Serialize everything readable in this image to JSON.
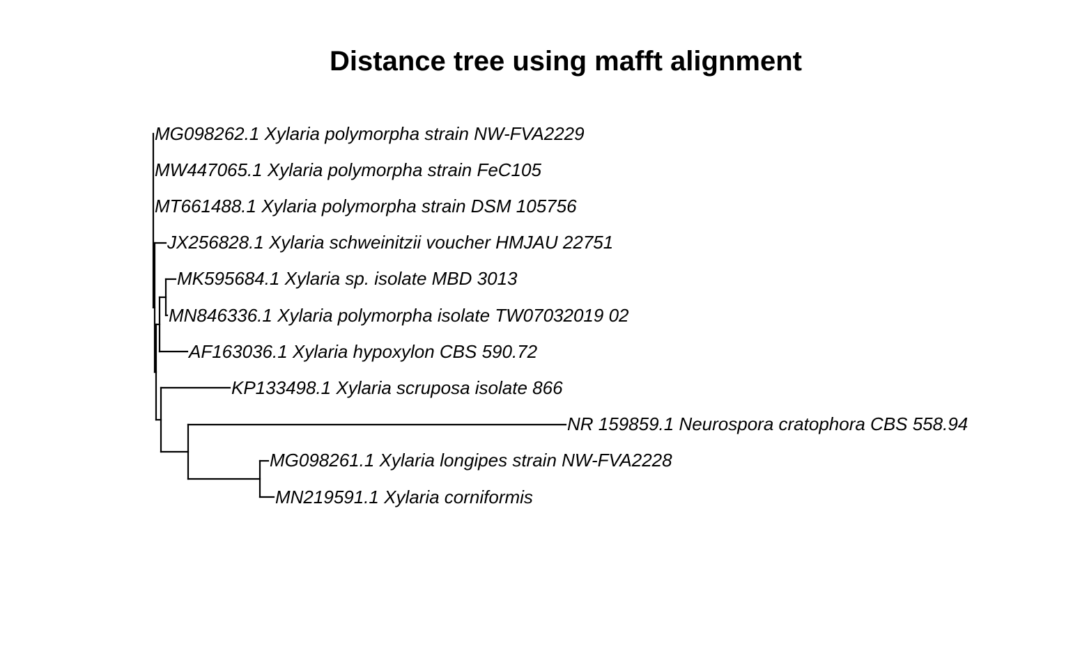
{
  "title": "Distance tree using mafft alignment",
  "tips": [
    {
      "id": "t1",
      "label": "MG098262.1 Xylaria polymorpha strain NW-FVA2229"
    },
    {
      "id": "t2",
      "label": "MW447065.1 Xylaria polymorpha strain FeC105"
    },
    {
      "id": "t3",
      "label": "MT661488.1 Xylaria polymorpha strain DSM 105756"
    },
    {
      "id": "t4",
      "label": "JX256828.1 Xylaria schweinitzii voucher HMJAU 22751"
    },
    {
      "id": "t5",
      "label": "MK595684.1 Xylaria sp. isolate MBD 3013"
    },
    {
      "id": "t6",
      "label": "MN846336.1 Xylaria polymorpha isolate TW07032019 02"
    },
    {
      "id": "t7",
      "label": "AF163036.1 Xylaria hypoxylon CBS 590.72"
    },
    {
      "id": "t8",
      "label": "KP133498.1 Xylaria scruposa isolate 866"
    },
    {
      "id": "t9",
      "label": "NR 159859.1 Neurospora cratophora CBS 558.94"
    },
    {
      "id": "t10",
      "label": "MG098261.1 Xylaria longipes strain NW-FVA2228"
    },
    {
      "id": "t11",
      "label": "MN219591.1 Xylaria corniformis"
    }
  ],
  "tree": {
    "name": "root",
    "children": [
      {
        "tip": "t1"
      },
      {
        "tip": "t2"
      },
      {
        "tip": "t3"
      },
      {
        "name": "n1",
        "children": [
          {
            "tip": "t4"
          },
          {
            "name": "n2",
            "children": [
              {
                "name": "n3",
                "children": [
                  {
                    "name": "n4",
                    "children": [
                      {
                        "tip": "t5"
                      },
                      {
                        "tip": "t6"
                      }
                    ]
                  },
                  {
                    "tip": "t7"
                  }
                ]
              },
              {
                "name": "n5",
                "children": [
                  {
                    "tip": "t8"
                  },
                  {
                    "name": "n6",
                    "children": [
                      {
                        "tip": "t9"
                      },
                      {
                        "name": "n7",
                        "children": [
                          {
                            "tip": "t10"
                          },
                          {
                            "tip": "t11"
                          }
                        ]
                      }
                    ]
                  }
                ]
              }
            ]
          }
        ]
      }
    ]
  }
}
